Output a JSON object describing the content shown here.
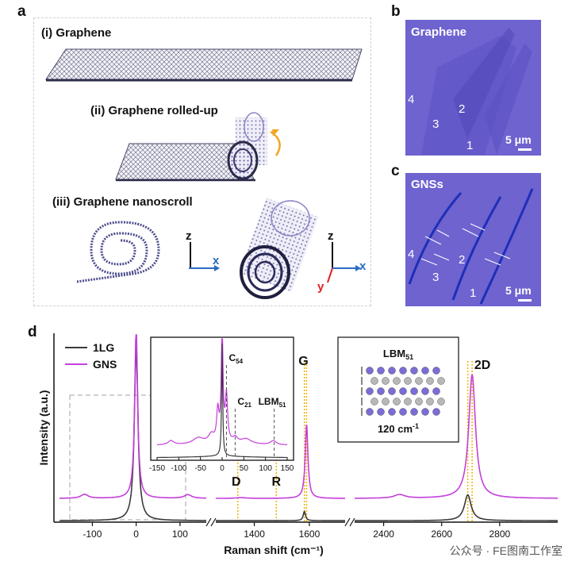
{
  "panel_a": {
    "letter": "a",
    "label_i": "(i) Graphene",
    "label_ii": "(ii) Graphene rolled-up",
    "label_iii": "(iii) Graphene nanoscroll",
    "axes1": {
      "z": "z",
      "x": "x"
    },
    "axes2": {
      "z": "z",
      "x": "x",
      "y": "y"
    }
  },
  "panel_b": {
    "letter": "b",
    "title": "Graphene",
    "numbers": [
      "4",
      "2",
      "3",
      "1"
    ],
    "scale": "5 μm"
  },
  "panel_c": {
    "letter": "c",
    "title": "GNSs",
    "numbers": [
      "4",
      "2",
      "3",
      "1"
    ],
    "scale": "5 μm"
  },
  "panel_d": {
    "letter": "d"
  },
  "chart_data": {
    "type": "line",
    "title": "",
    "xlabel": "Raman shift (cm⁻¹)",
    "ylabel": "Intensity (a.u.)",
    "x_segments": [
      [
        -175,
        160
      ],
      [
        1260,
        1730
      ],
      [
        2300,
        3000
      ]
    ],
    "x_ticks": [
      {
        "v": -100,
        "label": "-100"
      },
      {
        "v": 0,
        "label": "0"
      },
      {
        "v": 100,
        "label": "100"
      },
      {
        "v": 1400,
        "label": "1400"
      },
      {
        "v": 1600,
        "label": "1600"
      },
      {
        "v": 2400,
        "label": "2400"
      },
      {
        "v": 2600,
        "label": "2600"
      },
      {
        "v": 2800,
        "label": "2800"
      }
    ],
    "series": [
      {
        "name": "1LG",
        "color": "#3a3a3a",
        "baseline": 0.0,
        "peaks": [
          {
            "x": 0,
            "h": 0.93,
            "w": 5
          },
          {
            "x": 1582,
            "h": 0.05,
            "w": 5
          },
          {
            "x": 2690,
            "h": 0.14,
            "w": 14
          }
        ]
      },
      {
        "name": "GNS",
        "color": "#c43fdc",
        "baseline": 0.12,
        "peaks": [
          {
            "x": 0,
            "h": 0.93,
            "w": 4
          },
          {
            "x": -118,
            "h": 0.022,
            "w": 10
          },
          {
            "x": 118,
            "h": 0.02,
            "w": 10
          },
          {
            "x": 1352,
            "h": 0.004,
            "w": 25
          },
          {
            "x": 1590,
            "h": 0.4,
            "w": 6
          },
          {
            "x": 2455,
            "h": 0.02,
            "w": 22
          },
          {
            "x": 2705,
            "h": 0.67,
            "w": 14
          }
        ]
      }
    ],
    "annotations": [
      {
        "text": "G",
        "x": 1590
      },
      {
        "text": "2D",
        "x": 2705
      },
      {
        "text": "D",
        "x": 1340
      },
      {
        "text": "R",
        "x": 1480
      }
    ],
    "vlines": [
      1340,
      1480,
      1582,
      1590,
      2690,
      2705
    ],
    "inset": {
      "x_ticks": [
        -150,
        -100,
        -50,
        0,
        50,
        100,
        150
      ],
      "xlim": [
        -150,
        150
      ],
      "labels": [
        {
          "text": "C",
          "sub": "54",
          "x": 10
        },
        {
          "text": "C",
          "sub": "21",
          "x": 30
        },
        {
          "text": "LBM",
          "sub": "51",
          "x": 120
        }
      ]
    },
    "legend_box": {
      "title": "LBM",
      "title_sub": "51",
      "value": "120 cm",
      "value_sup": "-1"
    }
  },
  "watermark": "公众号 · FE图南工作室"
}
